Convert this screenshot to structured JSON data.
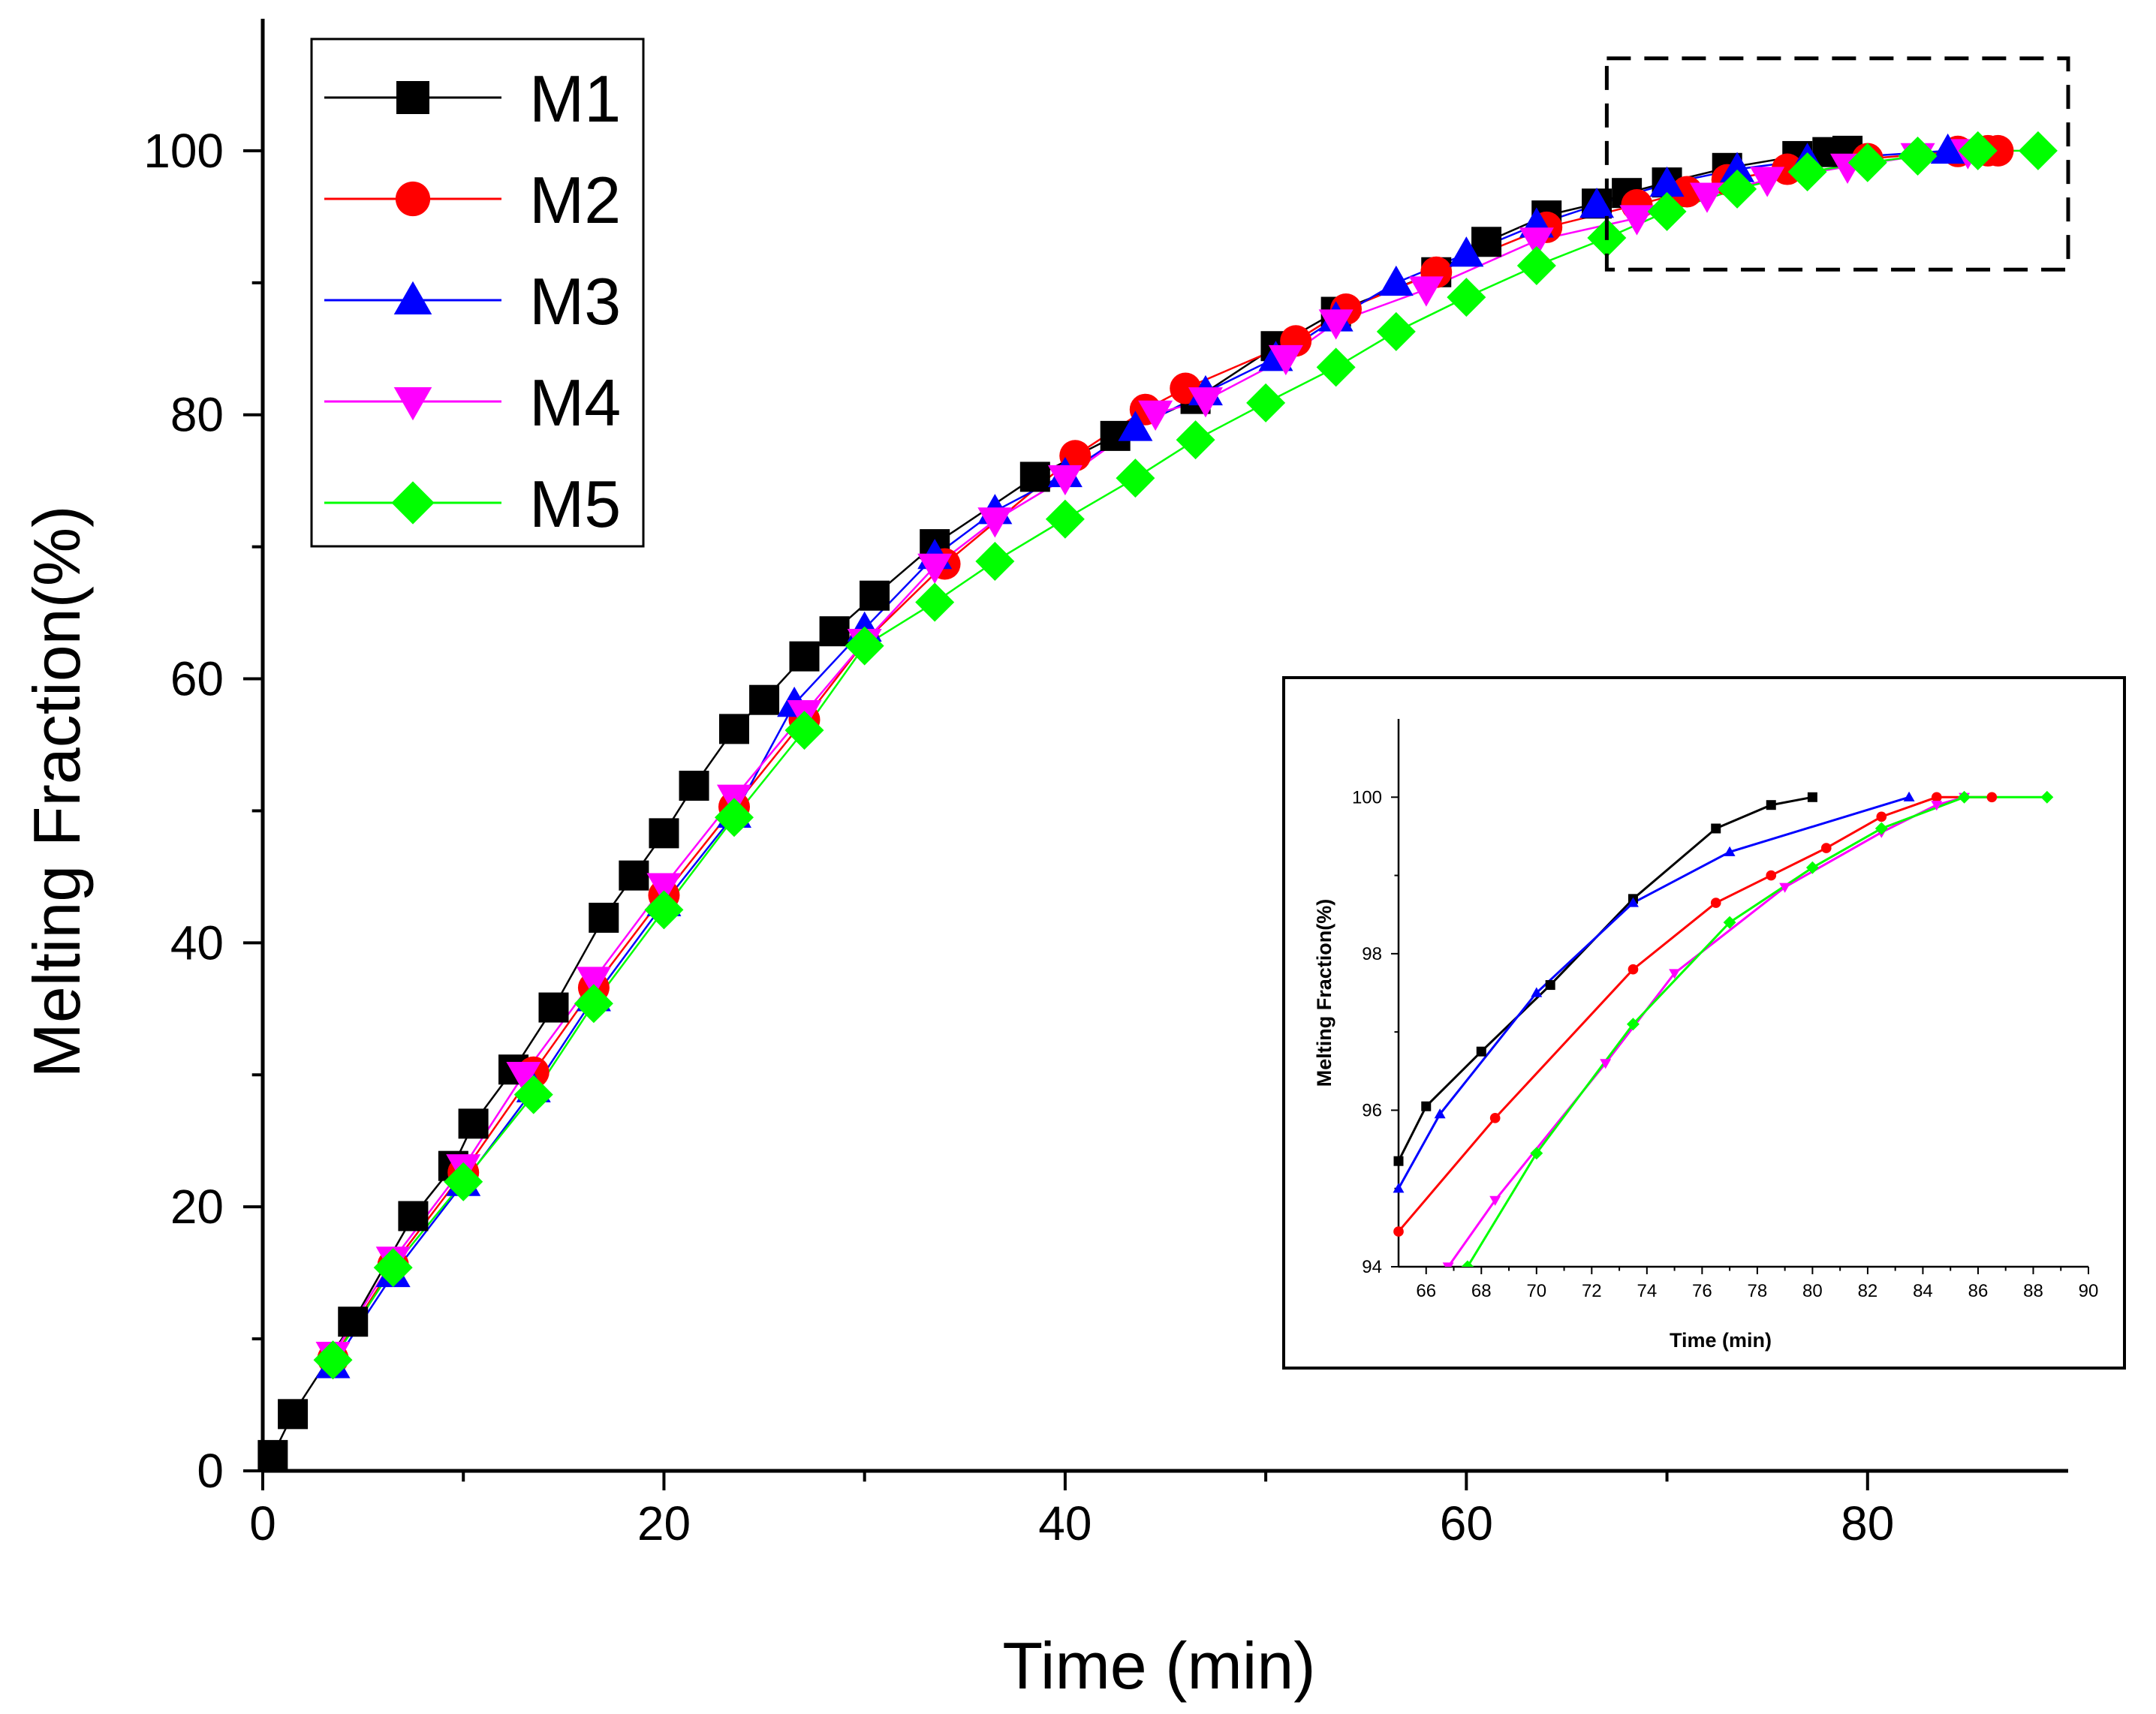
{
  "chart_data": [
    {
      "type": "line",
      "title": "",
      "xlabel": "Time (min)",
      "ylabel": "Melting Fraction(%)",
      "xlim": [
        0,
        90
      ],
      "ylim": [
        0,
        110
      ],
      "xticks": [
        "0",
        "20",
        "40",
        "60",
        "80"
      ],
      "yticks": [
        "0",
        "20",
        "40",
        "60",
        "80",
        "100"
      ],
      "legend_position": "top-left",
      "highlight_region": {
        "x": [
          67,
          90
        ],
        "y": [
          91,
          107
        ],
        "style": "dashed"
      },
      "series": [
        {
          "name": "M1",
          "marker": "square",
          "color": "#000000",
          "x": [
            0.5,
            1.5,
            4.5,
            7.5,
            9.5,
            10.5,
            12.5,
            14.5,
            17,
            18.5,
            20,
            21.5,
            23.5,
            25,
            27,
            28.5,
            30.5,
            33.5,
            38.5,
            42.5,
            46.5,
            50.5,
            53.5,
            58.5,
            61,
            64,
            66.5,
            68,
            70,
            73,
            76.5,
            78,
            79
          ],
          "y": [
            1.2,
            4.3,
            11.3,
            19.3,
            23.1,
            26.3,
            30.4,
            35.1,
            41.9,
            45.1,
            48.3,
            51.9,
            56.2,
            58.4,
            61.7,
            63.6,
            66.3,
            70.2,
            75.3,
            78.4,
            81.2,
            85.2,
            87.8,
            90.8,
            93.1,
            95.1,
            96.0,
            96.8,
            97.6,
            98.7,
            99.6,
            99.9,
            100
          ]
        },
        {
          "name": "M2",
          "marker": "circle",
          "color": "#ff0000",
          "x": [
            3.5,
            6.5,
            10,
            13.5,
            16.5,
            20,
            23.5,
            27,
            30,
            34,
            40.5,
            44,
            46,
            51.5,
            54,
            58.5,
            64,
            68.5,
            71,
            73,
            76,
            80,
            84.5,
            86.5,
            86
          ],
          "y": [
            8.5,
            15.6,
            22.6,
            30.2,
            36.6,
            43.6,
            50.3,
            56.9,
            62.8,
            68.7,
            76.9,
            80.4,
            82.0,
            85.6,
            88.0,
            90.8,
            94.2,
            95.9,
            96.9,
            97.8,
            98.6,
            99.4,
            99.95,
            100,
            100
          ]
        },
        {
          "name": "M3",
          "marker": "triangle-up",
          "color": "#0000ff",
          "x": [
            3.5,
            6.5,
            10,
            13.5,
            16.5,
            20,
            23.5,
            26.5,
            30,
            33.5,
            36.5,
            40,
            43.5,
            47,
            50.5,
            53.5,
            56.5,
            60,
            63.5,
            66.5,
            70,
            73.5,
            77,
            84
          ],
          "y": [
            8.0,
            14.9,
            21.8,
            28.9,
            35.8,
            43.0,
            49.7,
            58.1,
            63.8,
            69.3,
            72.7,
            75.5,
            79.0,
            81.7,
            84.3,
            87.3,
            90.0,
            92.2,
            94.4,
            95.9,
            97.5,
            98.6,
            99.3,
            100
          ]
        },
        {
          "name": "M4",
          "marker": "triangle-down",
          "color": "#ff00ff",
          "x": [
            3.5,
            6.5,
            10,
            13,
            16.5,
            20,
            23.5,
            27,
            30,
            33.5,
            36.5,
            40,
            44.5,
            47,
            51,
            53.5,
            58,
            63.5,
            68.5,
            72,
            75,
            79,
            82.5,
            85
          ],
          "y": [
            8.8,
            16.0,
            23.0,
            30.0,
            37.2,
            44.3,
            51.0,
            57.4,
            62.8,
            68.5,
            72.0,
            75.2,
            80.1,
            81.1,
            84.3,
            87.0,
            89.5,
            93.2,
            94.9,
            96.6,
            97.8,
            98.8,
            99.6,
            99.9
          ]
        },
        {
          "name": "M5",
          "marker": "diamond",
          "color": "#00ff00",
          "x": [
            3.5,
            6.5,
            10,
            13.5,
            16.5,
            20,
            23.5,
            27,
            30,
            33.5,
            36.5,
            40,
            43.5,
            46.5,
            50,
            53.5,
            56.5,
            60,
            63.5,
            67,
            70,
            73.5,
            77,
            80,
            82.5,
            85.5,
            88.5
          ],
          "y": [
            8.4,
            15.4,
            21.9,
            28.5,
            35.4,
            42.5,
            49.5,
            56.1,
            62.5,
            65.8,
            68.9,
            72.1,
            75.2,
            78.1,
            80.9,
            83.6,
            86.3,
            88.9,
            91.3,
            93.4,
            95.4,
            97.1,
            98.4,
            99.1,
            99.6,
            100,
            100
          ]
        }
      ]
    },
    {
      "type": "line",
      "title": "",
      "xlabel": "Time (min)",
      "ylabel": "Melting Fraction(%)",
      "xlim": [
        65,
        90
      ],
      "ylim": [
        94,
        101
      ],
      "xticks": [
        "66",
        "68",
        "70",
        "72",
        "74",
        "76",
        "78",
        "80",
        "82",
        "84",
        "86",
        "88",
        "90"
      ],
      "yticks": [
        "94",
        "96",
        "98",
        "100"
      ],
      "position": "inset, bottom-right",
      "series": [
        {
          "name": "M1",
          "color": "#000000",
          "marker": "square",
          "x": [
            65,
            66,
            68,
            70.5,
            73.5,
            76.5,
            78.5,
            80
          ],
          "y": [
            95.35,
            96.05,
            96.75,
            97.6,
            98.7,
            99.6,
            99.9,
            100
          ]
        },
        {
          "name": "M2",
          "color": "#ff0000",
          "marker": "circle",
          "x": [
            65,
            68.5,
            73.5,
            76.5,
            78.5,
            80.5,
            82.5,
            84.5,
            86.5
          ],
          "y": [
            94.45,
            95.9,
            97.8,
            98.65,
            99.0,
            99.35,
            99.75,
            100,
            100
          ]
        },
        {
          "name": "M3",
          "color": "#0000ff",
          "marker": "triangle-up",
          "x": [
            65,
            66.5,
            70,
            73.5,
            77,
            83.5
          ],
          "y": [
            95.0,
            95.95,
            97.5,
            98.65,
            99.3,
            100
          ]
        },
        {
          "name": "M4",
          "color": "#ff00ff",
          "marker": "triangle-down",
          "x": [
            66.8,
            68.5,
            72.5,
            75,
            79,
            82.5,
            84.5,
            85.5
          ],
          "y": [
            94.0,
            94.85,
            96.6,
            97.75,
            98.85,
            99.55,
            99.9,
            100
          ]
        },
        {
          "name": "M5",
          "color": "#00ff00",
          "marker": "diamond",
          "x": [
            67.5,
            70,
            73.5,
            77,
            80,
            82.5,
            85.5,
            88.5
          ],
          "y": [
            94.0,
            95.45,
            97.1,
            98.4,
            99.1,
            99.6,
            100,
            100
          ]
        }
      ]
    }
  ]
}
